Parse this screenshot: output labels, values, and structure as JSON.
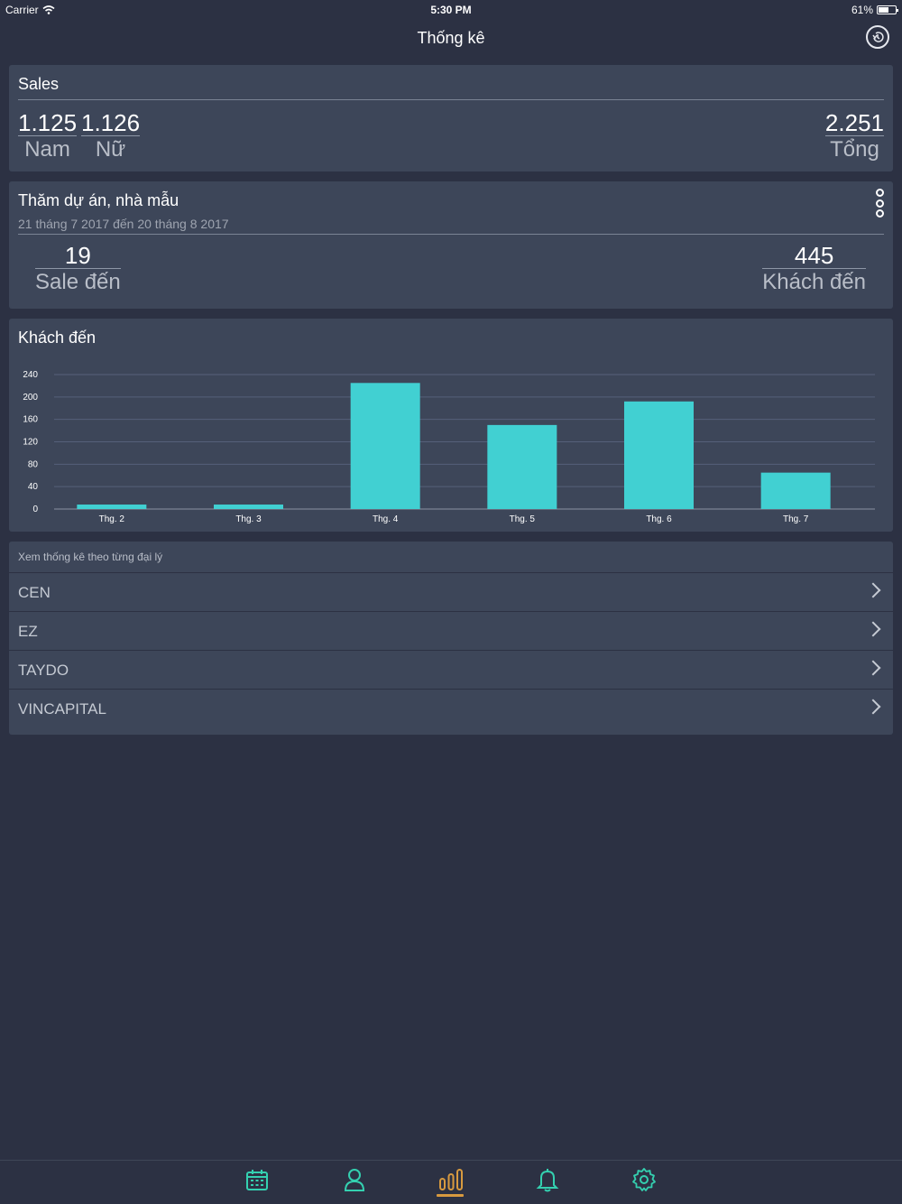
{
  "status_bar": {
    "carrier": "Carrier",
    "time": "5:30 PM",
    "battery": "61%",
    "battery_level": 0.61
  },
  "nav": {
    "title": "Thống kê",
    "history_icon": "history-icon"
  },
  "sales": {
    "title": "Sales",
    "male": {
      "value": "1.125",
      "label": "Nam"
    },
    "female": {
      "value": "1.126",
      "label": "Nữ"
    },
    "total": {
      "value": "2.251",
      "label": "Tổng"
    }
  },
  "visits": {
    "title": "Thăm dự án, nhà mẫu",
    "date_range": "21 tháng 7 2017 đến 20 tháng 8 2017",
    "sale": {
      "value": "19",
      "label": "Sale đến"
    },
    "customers": {
      "value": "445",
      "label": "Khách đến"
    },
    "more_icon": "more-vertical-icon"
  },
  "chart_card": {
    "title": "Khách đến"
  },
  "chart_data": {
    "type": "bar",
    "title": "Khách đến",
    "categories": [
      "Thg. 2",
      "Thg. 3",
      "Thg. 4",
      "Thg. 5",
      "Thg. 6",
      "Thg. 7"
    ],
    "values": [
      8,
      8,
      225,
      150,
      192,
      65
    ],
    "ylim": [
      0,
      240
    ],
    "yticks": [
      0,
      40,
      80,
      120,
      160,
      200,
      240
    ],
    "grid": true,
    "color": "#41d0d2"
  },
  "agencies": {
    "header": "Xem thống kê theo từng đại lý",
    "items": [
      {
        "label": "CEN"
      },
      {
        "label": "EZ"
      },
      {
        "label": "TAYDO"
      },
      {
        "label": "VINCAPITAL"
      }
    ]
  },
  "tabs": [
    {
      "icon": "calendar-icon",
      "active": false
    },
    {
      "icon": "user-icon",
      "active": false
    },
    {
      "icon": "bar-chart-icon",
      "active": true
    },
    {
      "icon": "bell-icon",
      "active": false
    },
    {
      "icon": "gear-icon",
      "active": false
    }
  ],
  "colors": {
    "background": "#2c3143",
    "card": "#3d4659",
    "accent": "#41d0d2",
    "tab_icon": "#34d0b0",
    "active_tab": "#d89a3f"
  }
}
